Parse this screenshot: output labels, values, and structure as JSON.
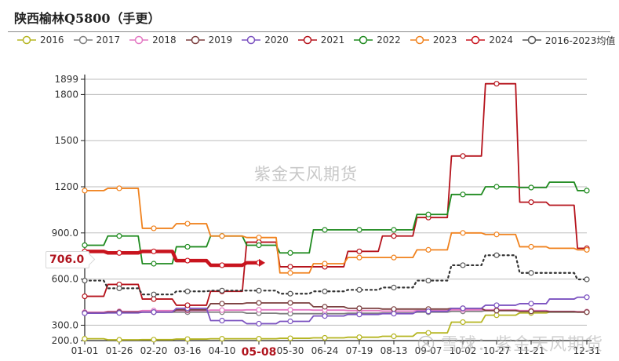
{
  "title": "陕西榆林Q5800（手更）",
  "legend": [
    {
      "label": "2016",
      "color": "#b5b521"
    },
    {
      "label": "2017",
      "color": "#7f7f7f"
    },
    {
      "label": "2018",
      "color": "#e377c2"
    },
    {
      "label": "2019",
      "color": "#7b3f3f"
    },
    {
      "label": "2020",
      "color": "#7b52c0"
    },
    {
      "label": "2021",
      "color": "#b5121b"
    },
    {
      "label": "2022",
      "color": "#1f8a1f"
    },
    {
      "label": "2023",
      "color": "#f0821e"
    },
    {
      "label": "2024",
      "color": "#c8141e"
    },
    {
      "label": "2016-2023均值",
      "color": "#555555"
    }
  ],
  "current_value_badge": "706.0",
  "highlighted_x_label": "05-08",
  "watermark_center": "紫金天风期货",
  "watermark_corner": "雪球：紫金天风期货",
  "chart_data": {
    "type": "line",
    "title": "陕西榆林Q5800（手更）",
    "xlabel": "",
    "ylabel": "",
    "ylim": [
      200,
      1899
    ],
    "yticks": [
      "200.0",
      "300.0",
      "600.0",
      "900.0",
      "1200",
      "1500",
      "1800",
      "1899"
    ],
    "x_tick_labels": [
      "01-01",
      "01-26",
      "02-20",
      "03-16",
      "04-10",
      "05-08",
      "05-30",
      "06-24",
      "07-19",
      "08-13",
      "09-07",
      "10-02",
      "10-27",
      "11-21",
      "12-31"
    ],
    "grid": "horizontal",
    "legend_position": "top",
    "x": [
      "01-01",
      "01-26",
      "02-20",
      "03-16",
      "04-10",
      "05-08",
      "05-30",
      "06-24",
      "07-19",
      "08-13",
      "09-07",
      "10-02",
      "10-27",
      "11-21",
      "12-06",
      "12-31"
    ],
    "series": [
      {
        "name": "2016",
        "values": [
          212,
          205,
          206,
          210,
          212,
          212,
          215,
          218,
          222,
          228,
          250,
          320,
          365,
          380,
          385,
          388
        ]
      },
      {
        "name": "2017",
        "values": [
          380,
          385,
          385,
          385,
          385,
          378,
          375,
          375,
          378,
          380,
          385,
          390,
          395,
          390,
          385,
          385
        ]
      },
      {
        "name": "2018",
        "values": [
          385,
          390,
          395,
          395,
          398,
          400,
          400,
          398,
          395,
          392,
          395,
          400,
          400,
          395,
          390,
          388
        ]
      },
      {
        "name": "2019",
        "values": [
          380,
          385,
          385,
          400,
          440,
          445,
          445,
          420,
          410,
          405,
          405,
          410,
          395,
          390,
          388,
          385
        ]
      },
      {
        "name": "2020",
        "values": [
          378,
          380,
          385,
          410,
          330,
          310,
          325,
          360,
          370,
          375,
          390,
          410,
          430,
          440,
          470,
          482
        ]
      },
      {
        "name": "2021",
        "values": [
          488,
          565,
          470,
          430,
          520,
          840,
          680,
          680,
          780,
          880,
          1000,
          1400,
          1870,
          1100,
          1080,
          800
        ]
      },
      {
        "name": "2022",
        "values": [
          820,
          880,
          700,
          810,
          880,
          820,
          770,
          920,
          920,
          920,
          1020,
          1150,
          1200,
          1195,
          1230,
          1175
        ]
      },
      {
        "name": "2023",
        "values": [
          1175,
          1190,
          930,
          960,
          880,
          870,
          640,
          700,
          740,
          740,
          790,
          900,
          890,
          810,
          800,
          790
        ]
      },
      {
        "name": "2024",
        "values": [
          780,
          770,
          780,
          720,
          690,
          706
        ]
      },
      {
        "name": "2016-2023均值",
        "values": [
          590,
          540,
          500,
          520,
          525,
          525,
          505,
          520,
          530,
          545,
          590,
          690,
          755,
          640,
          640,
          598
        ]
      }
    ]
  }
}
